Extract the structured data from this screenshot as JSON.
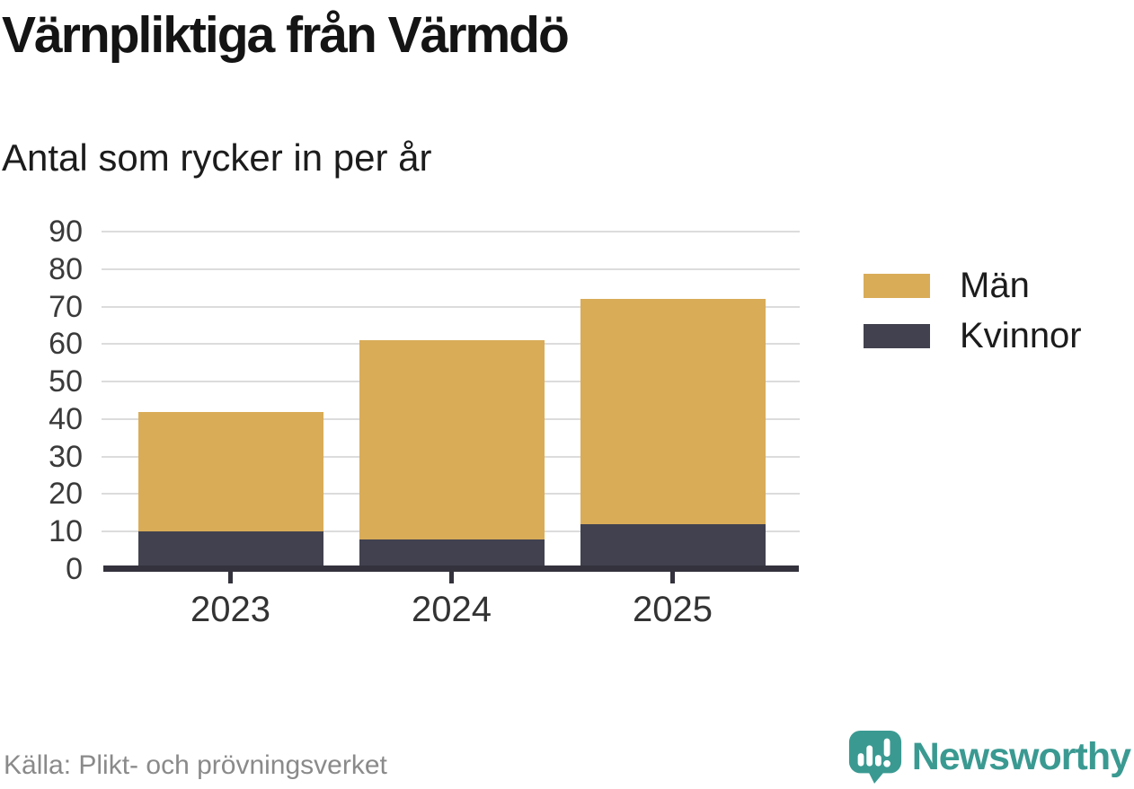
{
  "header": {
    "title": "Värnpliktiga från Värmdö",
    "subtitle": "Antal som rycker in per år"
  },
  "chart_data": {
    "type": "bar",
    "stacked": true,
    "title": "Värnpliktiga från Värmdö",
    "subtitle": "Antal som rycker in per år",
    "categories": [
      "2023",
      "2024",
      "2025"
    ],
    "series": [
      {
        "name": "Män",
        "color": "#d9ac58",
        "values": [
          32,
          53,
          60
        ]
      },
      {
        "name": "Kvinnor",
        "color": "#41414f",
        "values": [
          10,
          8,
          12
        ]
      }
    ],
    "stack_bottom_to_top": [
      "Kvinnor",
      "Män"
    ],
    "totals": [
      42,
      61,
      72
    ],
    "xlabel": "",
    "ylabel": "",
    "ylim": [
      0,
      90
    ],
    "ytick_step": 10,
    "yticks": [
      0,
      10,
      20,
      30,
      40,
      50,
      60,
      70,
      80,
      90
    ],
    "grid": true,
    "legend_position": "right"
  },
  "legend": {
    "items": [
      {
        "label": "Män",
        "color": "#d9ac58"
      },
      {
        "label": "Kvinnor",
        "color": "#41414f"
      }
    ]
  },
  "footer": {
    "source": "Källa: Plikt- och prövningsverket",
    "brand": "Newsworthy"
  },
  "colors": {
    "men": "#d9ac58",
    "women": "#41414f",
    "axis": "#33323d",
    "grid": "#dcdcdc",
    "tick_label": "#3a3a3a",
    "brand_teal": "#3a9a92",
    "source_text": "#8a8a8a"
  }
}
